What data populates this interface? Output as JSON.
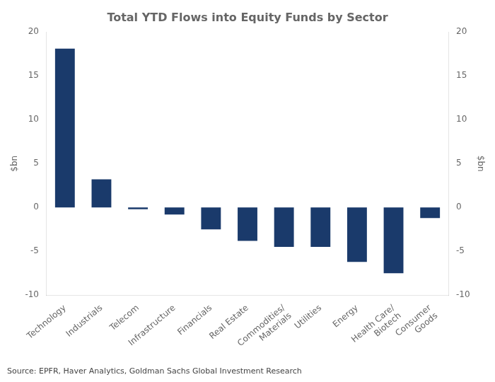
{
  "chart_data": {
    "type": "bar",
    "title": "Total YTD Flows into Equity Funds by Sector",
    "ylabel": "$bn",
    "y2label": "$bn",
    "source": "Source: EPFR, Haver Analytics, Goldman Sachs Global Investment Research",
    "categories": [
      "Technology",
      "Industrials",
      "Telecom",
      "Infrastructure",
      "Financials",
      "Real Estate",
      "Commodities/\nMaterials",
      "Utilities",
      "Energy",
      "Health Care/\nBiotech",
      "Consumer\nGoods"
    ],
    "values": [
      18.1,
      3.2,
      -0.2,
      -0.8,
      -2.5,
      -3.8,
      -4.5,
      -4.5,
      -6.2,
      -7.5,
      -1.2
    ],
    "color": "#1a3a6b",
    "ylim": [
      -10,
      20
    ],
    "yticks": [
      -10,
      -5,
      0,
      5,
      10,
      15,
      20
    ],
    "y2lim": [
      -10,
      20
    ],
    "y2ticks": [
      -10,
      -5,
      0,
      5,
      10,
      15,
      20
    ],
    "grid": false
  }
}
